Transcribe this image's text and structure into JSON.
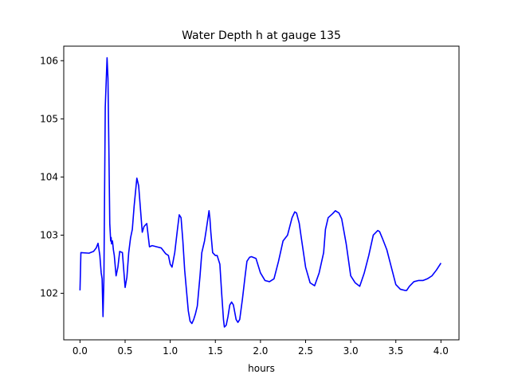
{
  "chart_data": {
    "type": "line",
    "title": "Water Depth h at gauge 135",
    "xlabel": "hours",
    "ylabel": "",
    "xlim": [
      -0.18,
      4.2
    ],
    "ylim": [
      101.2,
      106.25
    ],
    "xticks": [
      0.0,
      0.5,
      1.0,
      1.5,
      2.0,
      2.5,
      3.0,
      3.5,
      4.0
    ],
    "xtick_labels": [
      "0.0",
      "0.5",
      "1.0",
      "1.5",
      "2.0",
      "2.5",
      "3.0",
      "3.5",
      "4.0"
    ],
    "yticks": [
      102,
      103,
      104,
      105,
      106
    ],
    "ytick_labels": [
      "102",
      "103",
      "104",
      "105",
      "106"
    ],
    "grid": false,
    "legend": "none",
    "series": [
      {
        "color": "#0000ff",
        "x": [
          0.0,
          0.01,
          0.1,
          0.15,
          0.18,
          0.2,
          0.22,
          0.235,
          0.245,
          0.255,
          0.265,
          0.28,
          0.3,
          0.31,
          0.32,
          0.33,
          0.34,
          0.345,
          0.35,
          0.36,
          0.37,
          0.38,
          0.4,
          0.42,
          0.44,
          0.47,
          0.5,
          0.52,
          0.54,
          0.56,
          0.58,
          0.6,
          0.63,
          0.65,
          0.67,
          0.69,
          0.71,
          0.74,
          0.77,
          0.8,
          0.85,
          0.9,
          0.95,
          0.98,
          1.0,
          1.02,
          1.05,
          1.08,
          1.1,
          1.12,
          1.14,
          1.16,
          1.18,
          1.2,
          1.22,
          1.24,
          1.26,
          1.28,
          1.3,
          1.33,
          1.35,
          1.38,
          1.4,
          1.43,
          1.44,
          1.45,
          1.47,
          1.5,
          1.52,
          1.55,
          1.57,
          1.59,
          1.6,
          1.62,
          1.64,
          1.66,
          1.68,
          1.7,
          1.73,
          1.75,
          1.77,
          1.8,
          1.83,
          1.85,
          1.88,
          1.9,
          1.95,
          2.0,
          2.05,
          2.1,
          2.15,
          2.2,
          2.25,
          2.3,
          2.35,
          2.38,
          2.4,
          2.43,
          2.45,
          2.5,
          2.55,
          2.6,
          2.65,
          2.7,
          2.72,
          2.75,
          2.8,
          2.83,
          2.87,
          2.9,
          2.95,
          3.0,
          3.05,
          3.1,
          3.15,
          3.2,
          3.25,
          3.3,
          3.32,
          3.35,
          3.4,
          3.45,
          3.5,
          3.55,
          3.6,
          3.62,
          3.65,
          3.7,
          3.75,
          3.8,
          3.85,
          3.9,
          3.95,
          4.0
        ],
        "y": [
          102.05,
          102.7,
          102.69,
          102.72,
          102.78,
          102.86,
          102.65,
          102.35,
          102.25,
          101.6,
          102.25,
          105.2,
          106.05,
          105.7,
          104.5,
          103.2,
          102.9,
          102.96,
          102.85,
          102.9,
          102.75,
          102.65,
          102.3,
          102.45,
          102.72,
          102.7,
          102.1,
          102.28,
          102.7,
          102.95,
          103.1,
          103.5,
          103.98,
          103.85,
          103.45,
          103.05,
          103.15,
          103.2,
          102.8,
          102.82,
          102.8,
          102.78,
          102.68,
          102.65,
          102.5,
          102.45,
          102.7,
          103.1,
          103.35,
          103.3,
          102.9,
          102.4,
          102.05,
          101.7,
          101.52,
          101.48,
          101.55,
          101.65,
          101.78,
          102.3,
          102.7,
          102.9,
          103.1,
          103.42,
          103.28,
          103.05,
          102.7,
          102.65,
          102.65,
          102.5,
          102.0,
          101.55,
          101.42,
          101.45,
          101.6,
          101.8,
          101.85,
          101.8,
          101.55,
          101.5,
          101.55,
          101.9,
          102.3,
          102.55,
          102.62,
          102.63,
          102.6,
          102.35,
          102.22,
          102.2,
          102.25,
          102.55,
          102.9,
          103.0,
          103.3,
          103.4,
          103.38,
          103.2,
          102.98,
          102.45,
          102.18,
          102.13,
          102.35,
          102.7,
          103.1,
          103.3,
          103.37,
          103.42,
          103.38,
          103.28,
          102.85,
          102.3,
          102.18,
          102.12,
          102.35,
          102.65,
          103.0,
          103.08,
          103.06,
          102.95,
          102.75,
          102.45,
          102.15,
          102.07,
          102.05,
          102.05,
          102.12,
          102.2,
          102.22,
          102.22,
          102.25,
          102.3,
          102.4,
          102.52
        ]
      }
    ]
  }
}
